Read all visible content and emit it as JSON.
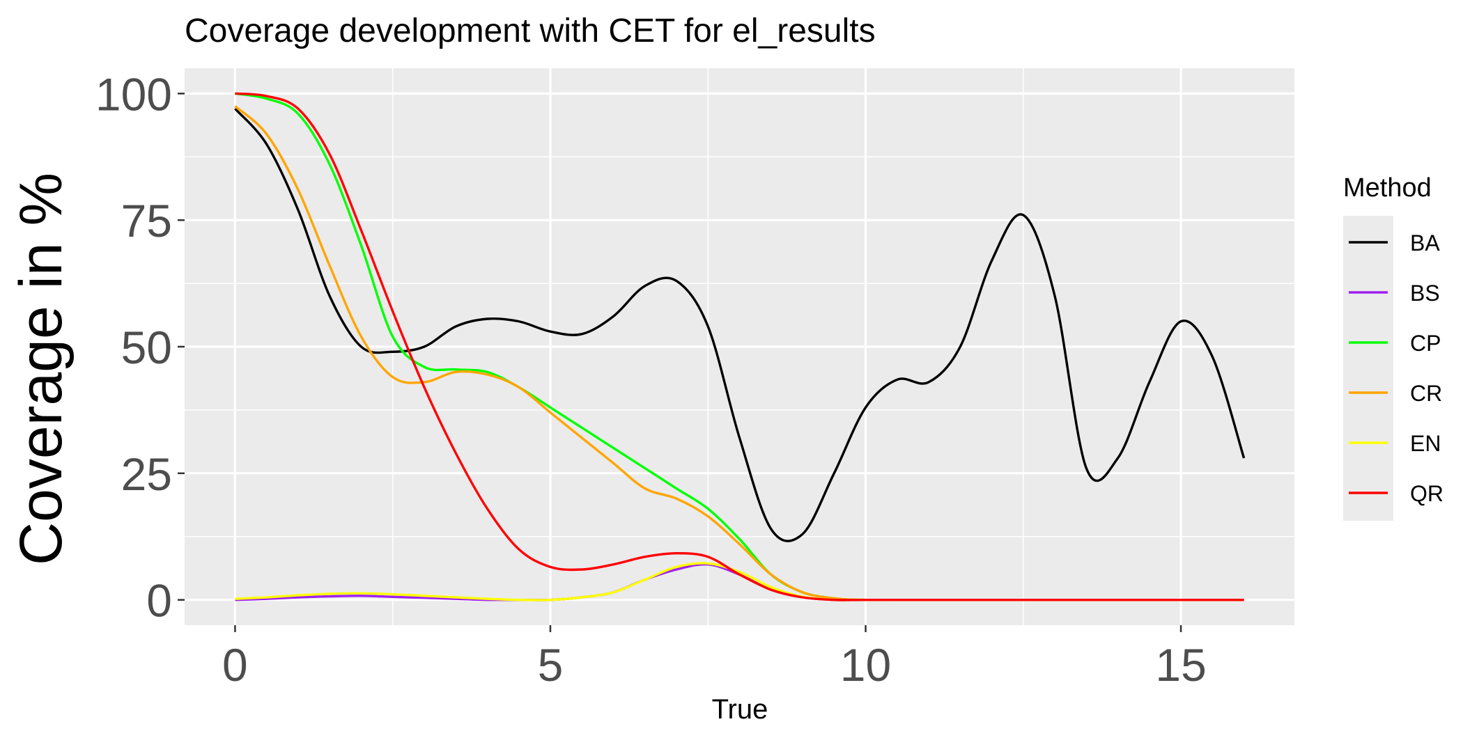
{
  "chart_data": {
    "type": "line",
    "title": "Coverage development with CET for el_results",
    "xlabel": "True",
    "ylabel": "Coverage in %",
    "xlim": [
      -0.8,
      16.8
    ],
    "ylim": [
      -5,
      105
    ],
    "x_ticks": [
      0,
      5,
      10,
      15
    ],
    "x_tick_labels": [
      "0",
      "5",
      "10",
      "15"
    ],
    "y_ticks": [
      0,
      25,
      50,
      75,
      100
    ],
    "y_tick_labels": [
      "0",
      "25",
      "50",
      "75",
      "100"
    ],
    "grid": true,
    "legend": {
      "title": "Method",
      "position": "right"
    },
    "series": [
      {
        "name": "BA",
        "color": "#000000",
        "x": [
          0,
          0.5,
          1,
          1.5,
          2,
          2.5,
          3,
          3.5,
          4,
          4.5,
          5,
          5.5,
          6,
          6.5,
          7,
          7.5,
          8,
          8.5,
          9,
          9.5,
          10,
          10.5,
          11,
          11.5,
          12,
          12.5,
          13,
          13.5,
          14,
          14.5,
          15,
          15.5,
          16
        ],
        "y": [
          97,
          90,
          77,
          60,
          50,
          49,
          50,
          54,
          55.5,
          55,
          53,
          52.5,
          56,
          62,
          63,
          54,
          32,
          14,
          13,
          25,
          38,
          43.5,
          43,
          50,
          67,
          76,
          60,
          26,
          28,
          43,
          55,
          48,
          28
        ]
      },
      {
        "name": "BS",
        "color": "#a020f0",
        "x": [
          0,
          0.5,
          1,
          1.5,
          2,
          2.5,
          3,
          3.5,
          4,
          4.5,
          5,
          5.5,
          6,
          6.5,
          7,
          7.5,
          8,
          8.5,
          9,
          9.5,
          10,
          11,
          12,
          13,
          14,
          15,
          16
        ],
        "y": [
          0,
          0.2,
          0.5,
          0.7,
          0.8,
          0.6,
          0.4,
          0.2,
          0,
          0,
          0,
          0.5,
          1.5,
          4,
          6,
          7,
          5,
          2,
          0.5,
          0,
          0,
          0,
          0,
          0,
          0,
          0,
          0
        ]
      },
      {
        "name": "CP",
        "color": "#00ff00",
        "x": [
          0,
          0.5,
          1,
          1.5,
          2,
          2.5,
          3,
          3.5,
          4,
          4.5,
          5,
          5.5,
          6,
          6.5,
          7,
          7.5,
          8,
          8.5,
          9,
          9.5,
          10,
          11,
          12,
          13,
          14,
          15,
          16
        ],
        "y": [
          100,
          99,
          96,
          86,
          70,
          52,
          46,
          45.5,
          45,
          42,
          38,
          34,
          30,
          26,
          22,
          18,
          12,
          5,
          1.5,
          0.3,
          0,
          0,
          0,
          0,
          0,
          0,
          0
        ]
      },
      {
        "name": "CR",
        "color": "#ffa500",
        "x": [
          0,
          0.5,
          1,
          1.5,
          2,
          2.5,
          3,
          3.5,
          4,
          4.5,
          5,
          5.5,
          6,
          6.5,
          7,
          7.5,
          8,
          8.5,
          9,
          9.5,
          10,
          11,
          12,
          13,
          14,
          15,
          16
        ],
        "y": [
          97.5,
          92,
          81,
          66,
          52,
          44,
          43,
          45,
          44.5,
          42,
          37,
          32,
          27,
          22,
          20,
          16.5,
          11,
          5,
          1.5,
          0.3,
          0,
          0,
          0,
          0,
          0,
          0,
          0
        ]
      },
      {
        "name": "EN",
        "color": "#ffff00",
        "x": [
          0,
          0.5,
          1,
          1.5,
          2,
          2.5,
          3,
          3.5,
          4,
          4.5,
          5,
          5.5,
          6,
          6.5,
          7,
          7.5,
          8,
          8.5,
          9,
          9.5,
          10,
          11,
          12,
          13,
          14,
          15,
          16
        ],
        "y": [
          0.2,
          0.5,
          0.9,
          1.2,
          1.3,
          1.1,
          0.8,
          0.5,
          0.2,
          0,
          0,
          0.5,
          1.5,
          4,
          6.5,
          7.2,
          5.5,
          2.5,
          0.6,
          0,
          0,
          0,
          0,
          0,
          0,
          0,
          0
        ]
      },
      {
        "name": "QR",
        "color": "#ff0000",
        "x": [
          0,
          0.5,
          1,
          1.5,
          2,
          2.5,
          3,
          3.5,
          4,
          4.5,
          5,
          5.5,
          6,
          6.5,
          7,
          7.5,
          8,
          8.5,
          9,
          9.5,
          10,
          11,
          12,
          13,
          14,
          15,
          16
        ],
        "y": [
          100,
          99.5,
          97,
          88,
          73,
          57,
          42,
          29,
          18,
          10,
          6.5,
          6,
          7,
          8.5,
          9.2,
          8.5,
          5,
          2,
          0.5,
          0,
          0,
          0,
          0,
          0,
          0,
          0,
          0
        ]
      }
    ]
  }
}
